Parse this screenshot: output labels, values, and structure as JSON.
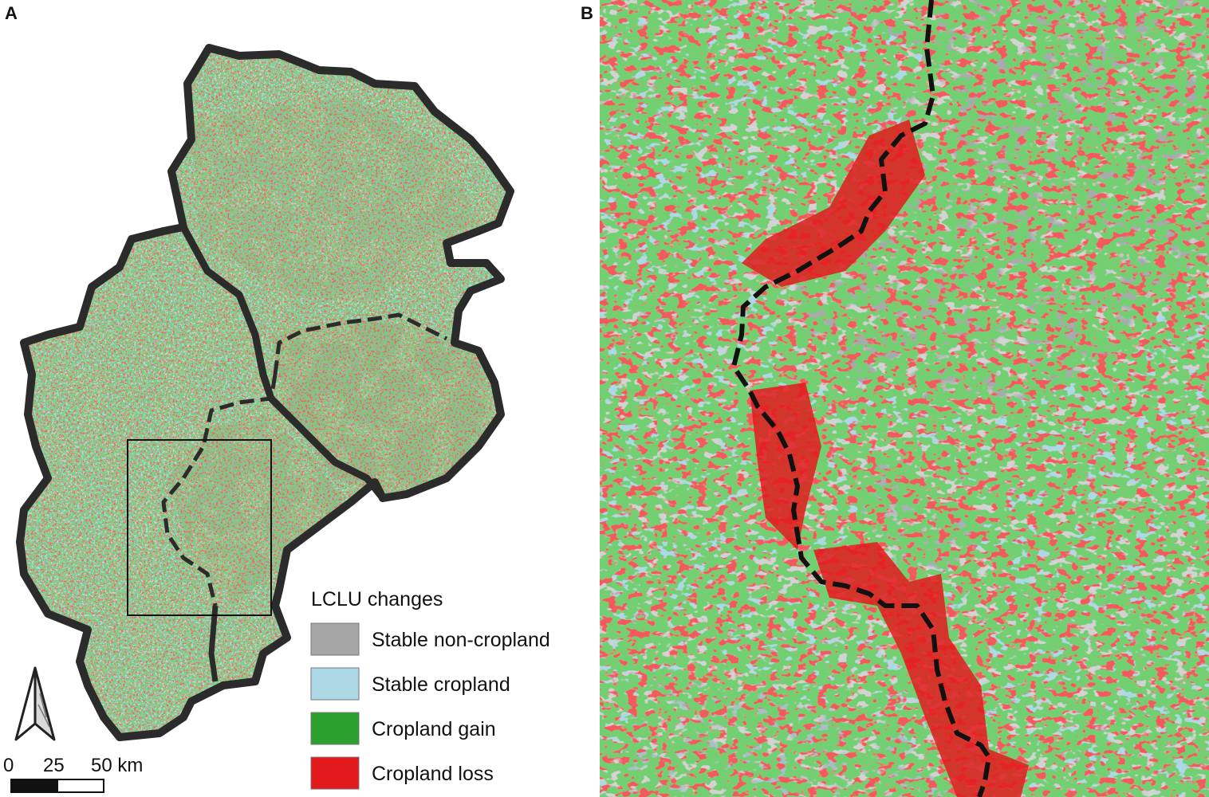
{
  "panels": {
    "a_label": "A",
    "b_label": "B"
  },
  "legend": {
    "title": "LCLU changes",
    "items": [
      {
        "label": "Stable non-cropland",
        "color": "#a6a6a6"
      },
      {
        "label": "Stable cropland",
        "color": "#add8e6"
      },
      {
        "label": "Cropland gain",
        "color": "#2ca02c"
      },
      {
        "label": "Cropland loss",
        "color": "#e31a1c"
      }
    ]
  },
  "scale_bar": {
    "labels": [
      "0",
      "25",
      "50 km"
    ]
  },
  "north_arrow": {
    "icon": "north-arrow-icon"
  },
  "colors": {
    "boundary": "#2b2b2b",
    "background": "#ffffff"
  }
}
